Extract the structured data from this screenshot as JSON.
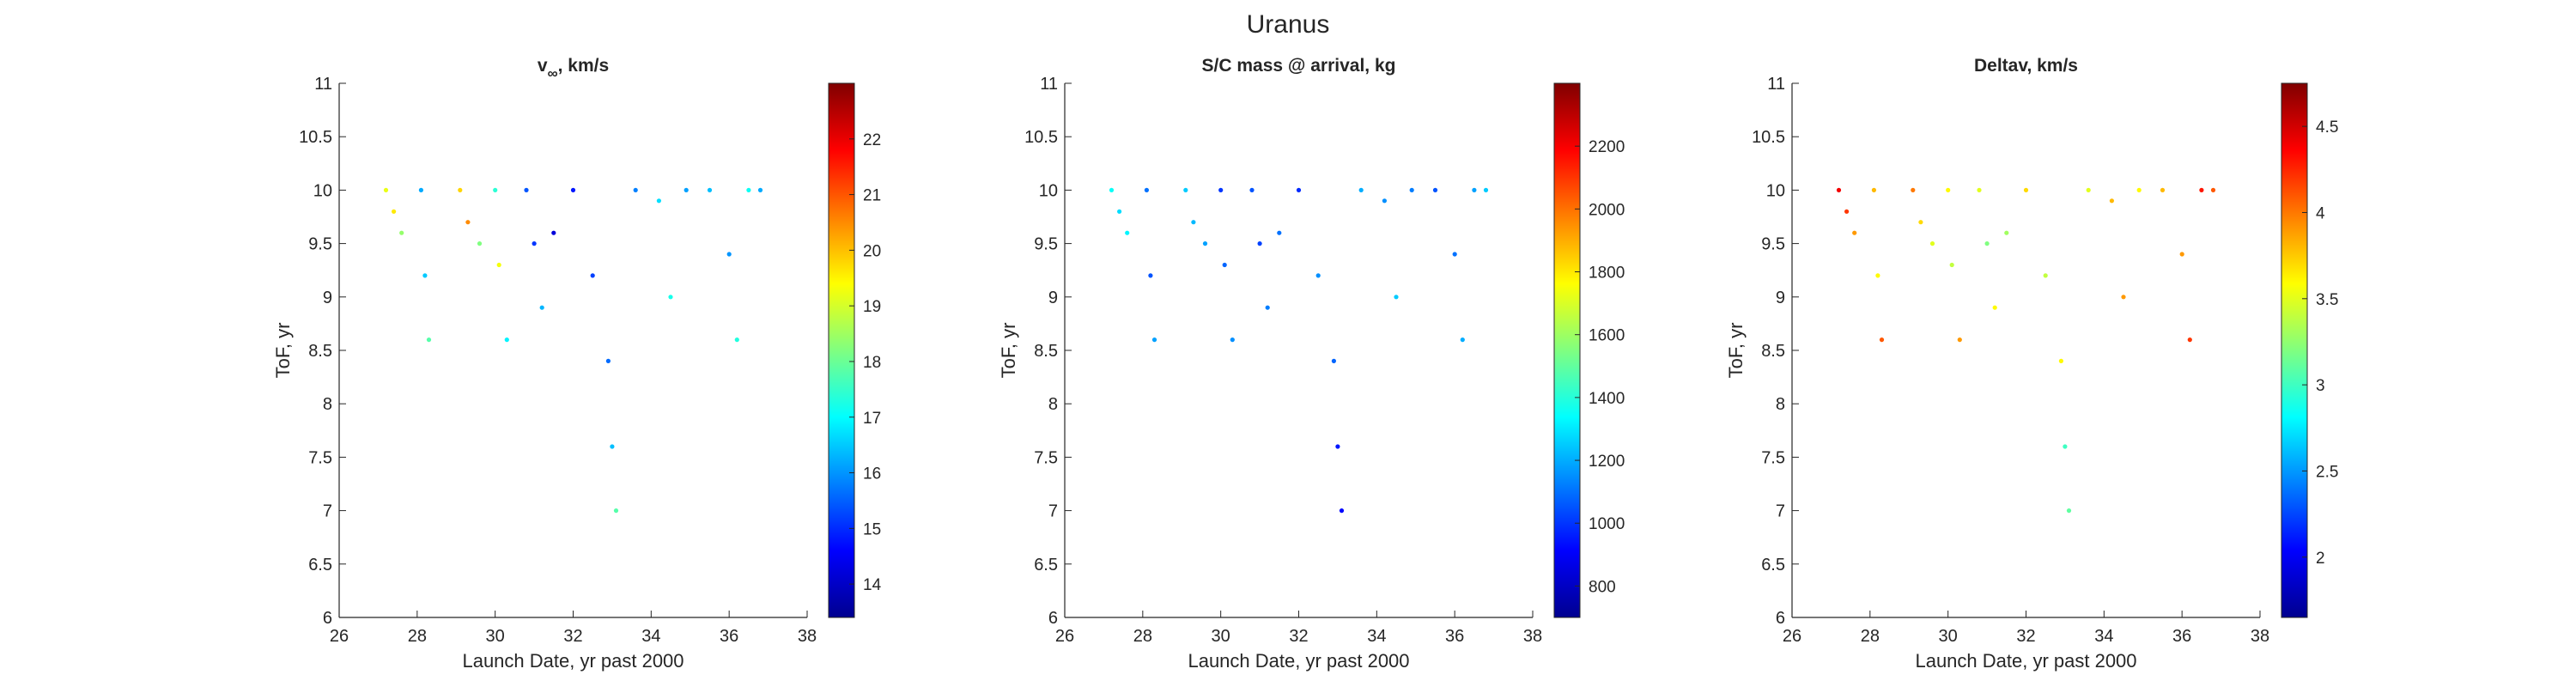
{
  "figure": {
    "title": "Uranus"
  },
  "colormap": [
    "#00008f",
    "#0000ff",
    "#0080ff",
    "#00ffff",
    "#80ff80",
    "#ffff00",
    "#ff8000",
    "#ff0000",
    "#800000"
  ],
  "chart_data": [
    {
      "type": "scatter",
      "title": "v∞, km/s",
      "title_main": "v",
      "title_sub": "∞",
      "title_rest": ", km/s",
      "xlabel": "Launch Date, yr past 2000",
      "ylabel": "ToF, yr",
      "xlim": [
        26,
        38
      ],
      "ylim": [
        6,
        11
      ],
      "xticks": [
        26,
        28,
        30,
        32,
        34,
        36,
        38
      ],
      "yticks": [
        6,
        6.5,
        7,
        7.5,
        8,
        8.5,
        9,
        9.5,
        10,
        10.5,
        11
      ],
      "colorbar": {
        "range": [
          13.4,
          23
        ],
        "ticks": [
          14,
          15,
          16,
          17,
          18,
          19,
          20,
          21,
          22
        ]
      },
      "series": [
        {
          "x": [
            27.2,
            27.4,
            27.6,
            28.1,
            28.2,
            28.3,
            29.1,
            29.3,
            29.6,
            30.0,
            30.1,
            30.3,
            30.8,
            31.0,
            31.2,
            31.5,
            32.0,
            32.5,
            32.9,
            33.0,
            33.1,
            33.6,
            34.2,
            34.5,
            34.9,
            35.5,
            36.0,
            36.2,
            36.5,
            36.8
          ],
          "y": [
            10.0,
            9.8,
            9.6,
            10.0,
            9.2,
            8.6,
            10.0,
            9.7,
            9.5,
            10.0,
            9.3,
            8.6,
            10.0,
            9.5,
            8.9,
            9.6,
            10.0,
            9.2,
            8.4,
            7.6,
            7.0,
            10.0,
            9.9,
            9.0,
            10.0,
            10.0,
            9.4,
            8.6,
            10.0,
            10.0
          ],
          "c": [
            19.2,
            19.6,
            18.4,
            16.2,
            16.5,
            17.8,
            19.8,
            20.5,
            18.2,
            17.4,
            19.3,
            16.9,
            15.4,
            15.1,
            16.3,
            14.2,
            14.8,
            15.2,
            15.6,
            16.4,
            17.8,
            15.8,
            16.7,
            17.2,
            16.1,
            16.4,
            16.0,
            17.3,
            17.1,
            16.2
          ]
        }
      ]
    },
    {
      "type": "scatter",
      "title": "S/C mass @ arrival, kg",
      "xlabel": "Launch Date, yr past 2000",
      "ylabel": "ToF, yr",
      "xlim": [
        26,
        38
      ],
      "ylim": [
        6,
        11
      ],
      "xticks": [
        26,
        28,
        30,
        32,
        34,
        36,
        38
      ],
      "yticks": [
        6,
        6.5,
        7,
        7.5,
        8,
        8.5,
        9,
        9.5,
        10,
        10.5,
        11
      ],
      "colorbar": {
        "range": [
          700,
          2400
        ],
        "ticks": [
          800,
          1000,
          1200,
          1400,
          1600,
          1800,
          2000,
          2200
        ]
      },
      "series": [
        {
          "x": [
            27.2,
            27.4,
            27.6,
            28.1,
            28.2,
            28.3,
            29.1,
            29.3,
            29.6,
            30.0,
            30.1,
            30.3,
            30.8,
            31.0,
            31.2,
            31.5,
            32.0,
            32.5,
            32.9,
            33.0,
            33.1,
            33.6,
            34.2,
            34.5,
            34.9,
            35.5,
            36.0,
            36.2,
            36.5,
            36.8
          ],
          "y": [
            10.0,
            9.8,
            9.6,
            10.0,
            9.2,
            8.6,
            10.0,
            9.7,
            9.5,
            10.0,
            9.3,
            8.6,
            10.0,
            9.5,
            8.9,
            9.6,
            10.0,
            9.2,
            8.4,
            7.6,
            7.0,
            10.0,
            9.9,
            9.0,
            10.0,
            10.0,
            9.4,
            8.6,
            10.0,
            10.0
          ],
          "c": [
            1350,
            1280,
            1320,
            1100,
            1050,
            1180,
            1250,
            1220,
            1180,
            1000,
            1080,
            1150,
            1050,
            1020,
            1120,
            1100,
            980,
            1150,
            1080,
            950,
            920,
            1200,
            1150,
            1250,
            1120,
            1050,
            1100,
            1200,
            1180,
            1250
          ]
        }
      ]
    },
    {
      "type": "scatter",
      "title": "Deltav, km/s",
      "xlabel": "Launch Date, yr past 2000",
      "ylabel": "ToF, yr",
      "xlim": [
        26,
        38
      ],
      "ylim": [
        6,
        11
      ],
      "xticks": [
        26,
        28,
        30,
        32,
        34,
        36,
        38
      ],
      "yticks": [
        6,
        6.5,
        7,
        7.5,
        8,
        8.5,
        9,
        9.5,
        10,
        10.5,
        11
      ],
      "colorbar": {
        "range": [
          1.65,
          4.75
        ],
        "ticks": [
          2,
          2.5,
          3,
          3.5,
          4,
          4.5
        ]
      },
      "series": [
        {
          "x": [
            27.2,
            27.4,
            27.6,
            28.1,
            28.2,
            28.3,
            29.1,
            29.3,
            29.6,
            30.0,
            30.1,
            30.3,
            30.8,
            31.0,
            31.2,
            31.5,
            32.0,
            32.5,
            32.9,
            33.0,
            33.1,
            33.6,
            34.2,
            34.5,
            34.9,
            35.5,
            36.0,
            36.2,
            36.5,
            36.8
          ],
          "y": [
            10.0,
            9.8,
            9.6,
            10.0,
            9.2,
            8.6,
            10.0,
            9.7,
            9.5,
            10.0,
            9.3,
            8.6,
            10.0,
            9.5,
            8.9,
            9.6,
            10.0,
            9.2,
            8.4,
            7.6,
            7.0,
            10.0,
            9.9,
            9.0,
            10.0,
            10.0,
            9.4,
            8.6,
            10.0,
            10.0
          ],
          "c": [
            4.4,
            4.2,
            3.9,
            3.8,
            3.6,
            4.1,
            4.0,
            3.7,
            3.5,
            3.6,
            3.4,
            3.9,
            3.5,
            3.2,
            3.6,
            3.3,
            3.7,
            3.4,
            3.6,
            3.0,
            3.1,
            3.5,
            3.8,
            3.9,
            3.6,
            3.8,
            3.9,
            4.2,
            4.3,
            4.1
          ]
        }
      ]
    }
  ]
}
